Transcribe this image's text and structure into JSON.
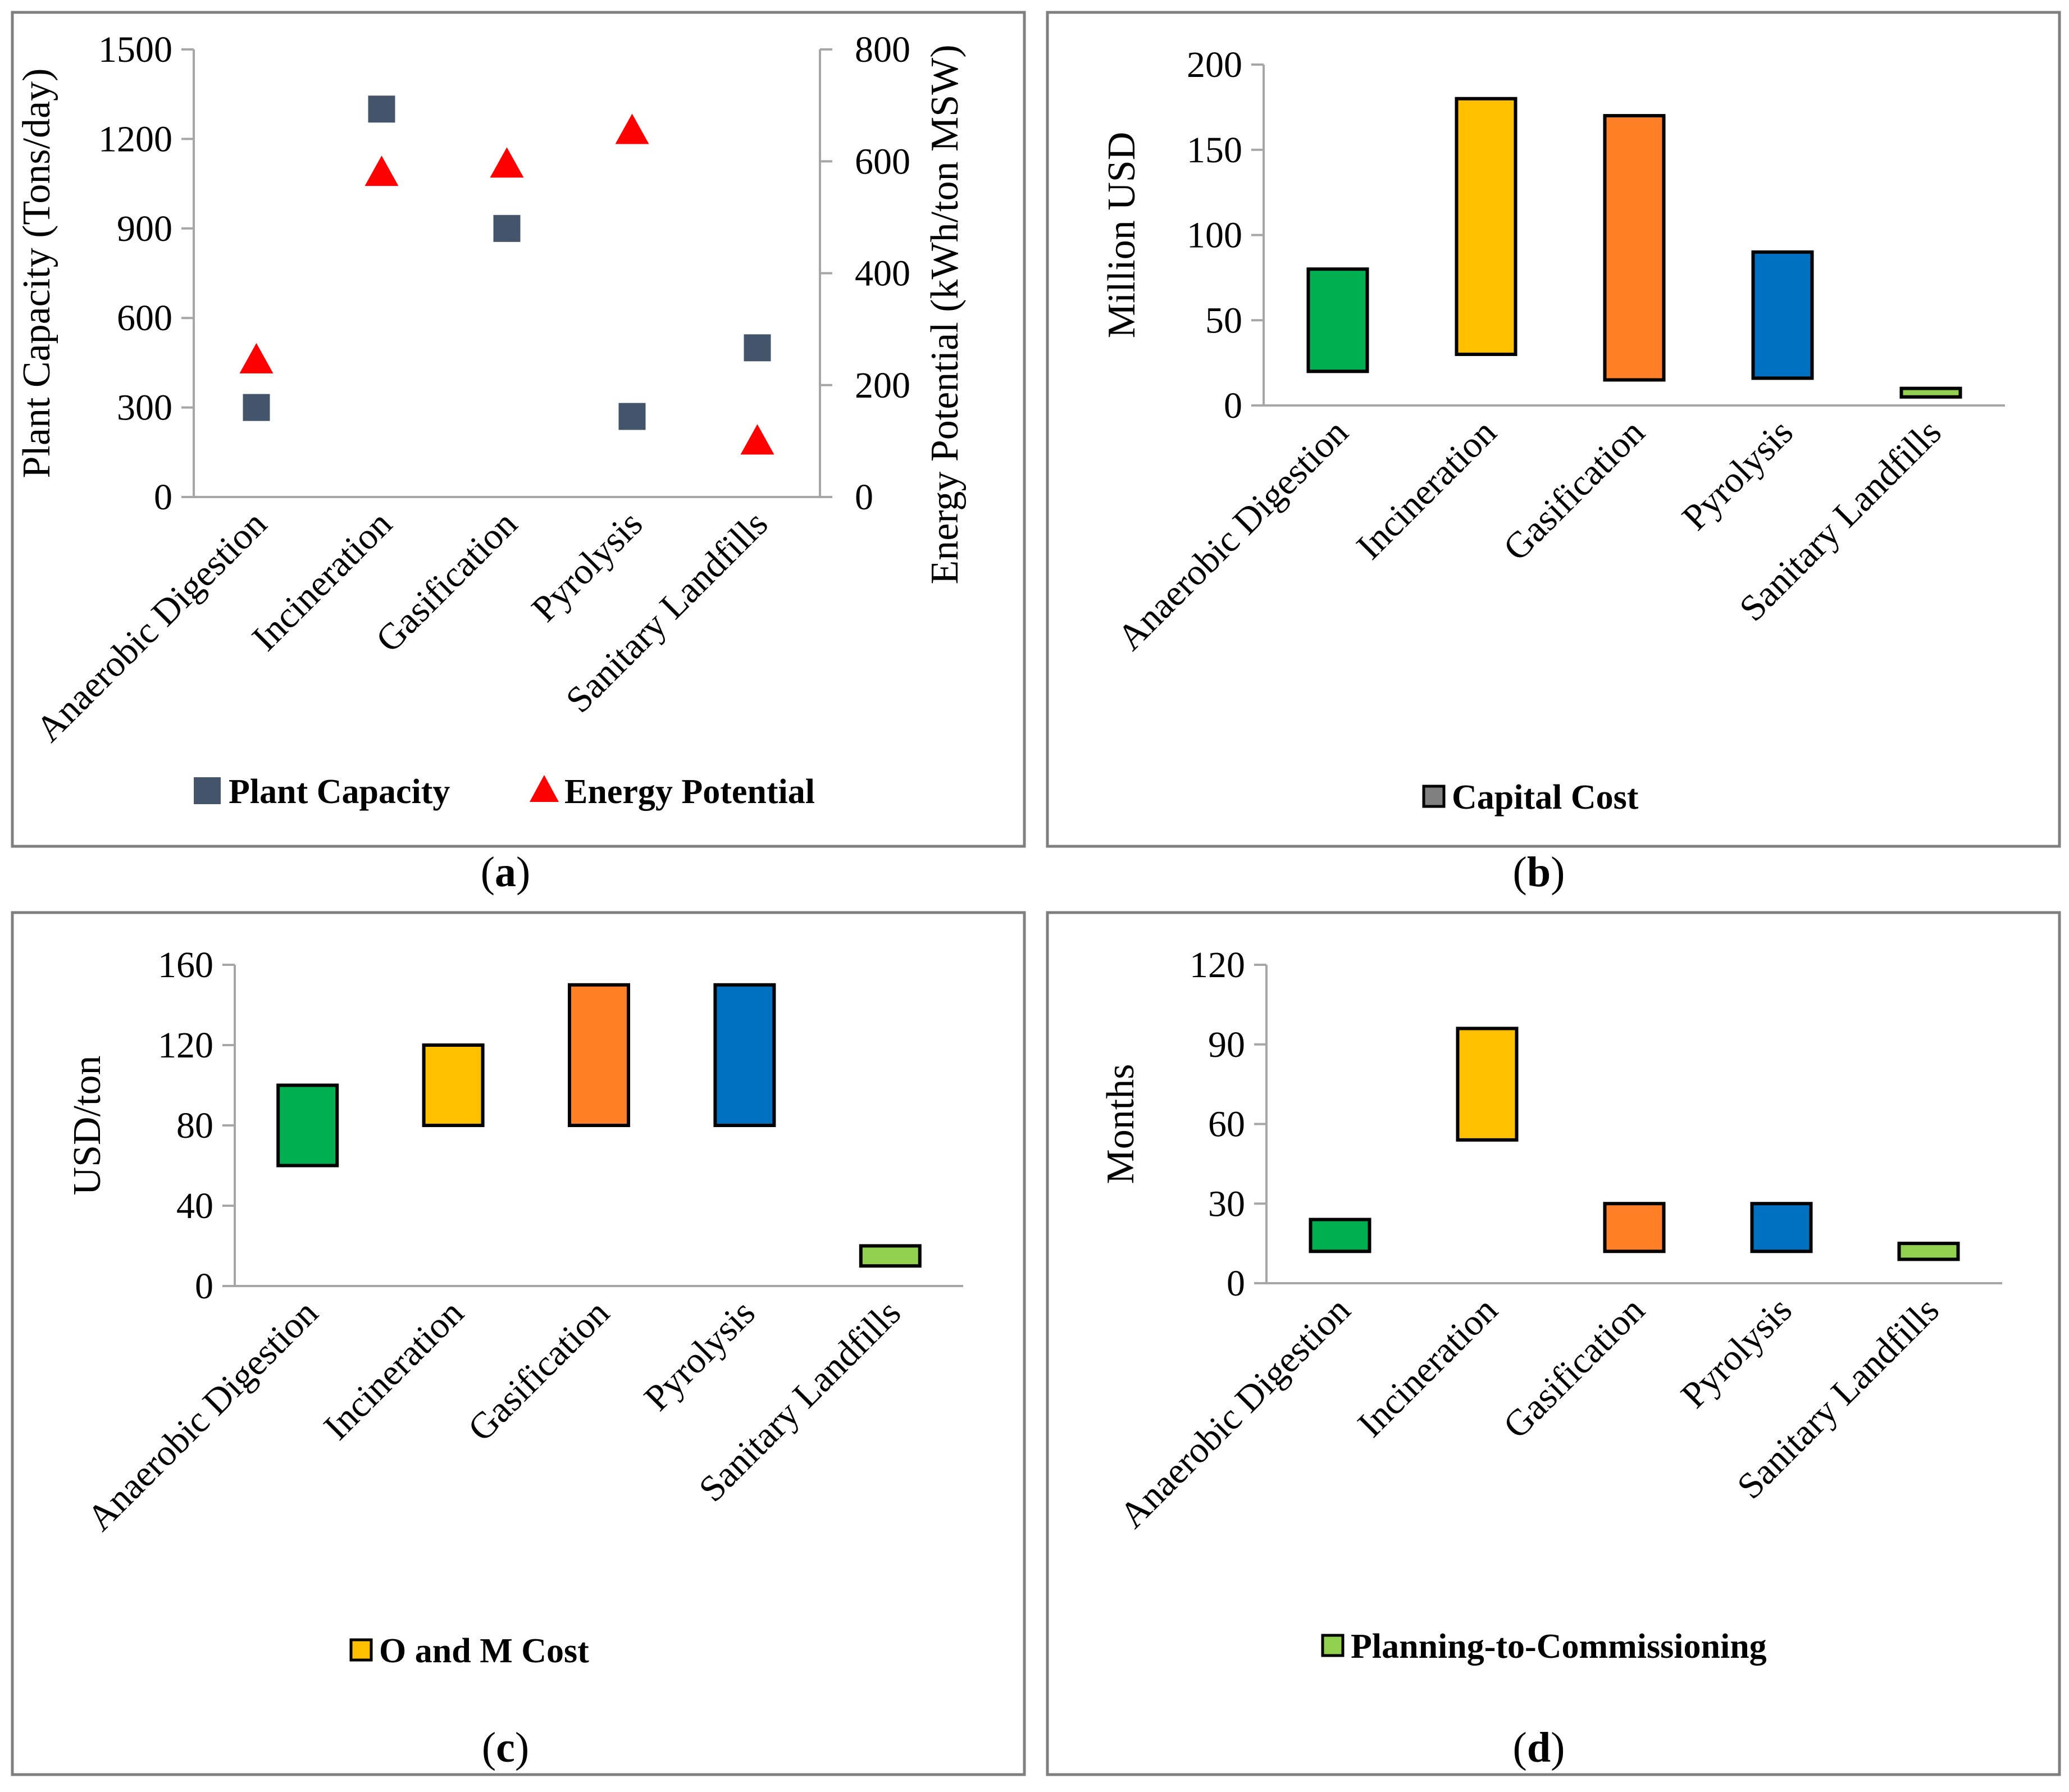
{
  "categories": [
    "Anaerobic Digestion",
    "Incineration",
    "Gasification",
    "Pyrolysis",
    "Sanitary Landfills"
  ],
  "chart_data": [
    {
      "id": "a",
      "type": "scatter",
      "caption_letter": "a",
      "ylabel": "Plant Capacity (Tons/day)",
      "y2label": "Energy Potential (kWh/ton MSW)",
      "ylim": [
        0,
        1500
      ],
      "yticks": [
        0,
        300,
        600,
        900,
        1200,
        1500
      ],
      "y2lim": [
        0,
        800
      ],
      "y2ticks": [
        0,
        200,
        400,
        600,
        800
      ],
      "series": [
        {
          "name": "Plant Capacity",
          "axis": "left",
          "marker": "square",
          "color": "#44546a",
          "values": [
            300,
            1300,
            900,
            270,
            500
          ]
        },
        {
          "name": "Energy Potential",
          "axis": "right",
          "marker": "triangle",
          "color": "#ff0000",
          "values": [
            245,
            580,
            595,
            655,
            100
          ]
        }
      ],
      "legend": [
        "Plant Capacity",
        "Energy Potential"
      ]
    },
    {
      "id": "b",
      "type": "floating-bar",
      "caption_letter": "b",
      "ylabel": "Million USD",
      "ylim": [
        0,
        200
      ],
      "yticks": [
        0,
        50,
        100,
        150,
        200
      ],
      "ranges": [
        [
          20,
          80
        ],
        [
          30,
          180
        ],
        [
          15,
          170
        ],
        [
          16,
          90
        ],
        [
          5,
          10
        ]
      ],
      "legend": [
        "Capital Cost"
      ]
    },
    {
      "id": "c",
      "type": "floating-bar",
      "caption_letter": "c",
      "ylabel": "USD/ton",
      "ylim": [
        0,
        160
      ],
      "yticks": [
        0,
        40,
        80,
        120,
        160
      ],
      "ranges": [
        [
          60,
          100
        ],
        [
          80,
          120
        ],
        [
          80,
          150
        ],
        [
          80,
          150
        ],
        [
          10,
          20
        ]
      ],
      "legend": [
        "O and M Cost"
      ]
    },
    {
      "id": "d",
      "type": "floating-bar",
      "caption_letter": "d",
      "ylabel": "Months",
      "ylim": [
        0,
        120
      ],
      "yticks": [
        0,
        30,
        60,
        90,
        120
      ],
      "ranges": [
        [
          12,
          24
        ],
        [
          54,
          96
        ],
        [
          12,
          30
        ],
        [
          12,
          30
        ],
        [
          9,
          15
        ]
      ],
      "legend": [
        "Planning-to-Commissioning"
      ]
    }
  ],
  "colors": {
    "bars": [
      "#00b050",
      "#ffc000",
      "#ff7f27",
      "#0070c0",
      "#92d050"
    ],
    "legend_b": "#808080",
    "legend_c": "#ffc000",
    "legend_d": "#92d050",
    "square": "#44546a",
    "triangle": "#ff0000"
  }
}
